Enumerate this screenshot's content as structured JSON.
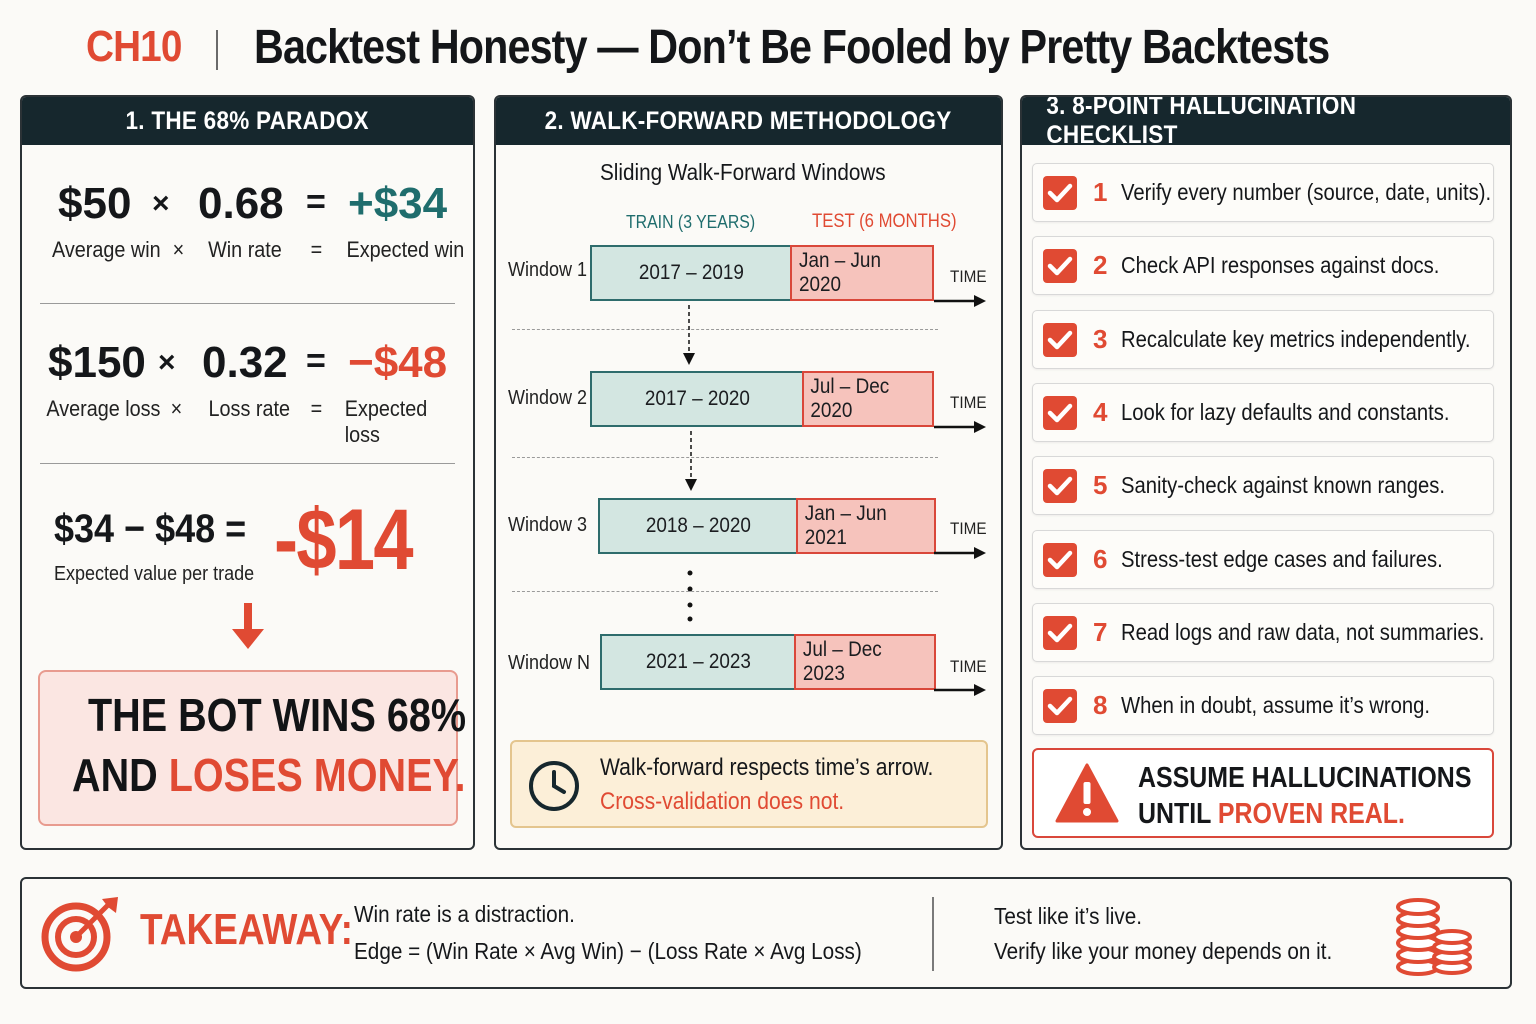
{
  "header": {
    "chapter": "CH10",
    "title": "Backtest Honesty — Don’t Be Fooled by Pretty Backtests"
  },
  "panel1": {
    "heading": "1. THE 68% PARADOX",
    "row1": {
      "a": "$50",
      "op": "×",
      "b": "0.68",
      "eq": "=",
      "result": "+$34",
      "la": "Average win",
      "lop": "×",
      "lb": "Win rate",
      "leq": "=",
      "lresult": "Expected win"
    },
    "row2": {
      "a": "$150",
      "op": "×",
      "b": "0.32",
      "eq": "=",
      "result": "−$48",
      "la": "Average loss",
      "lop": "×",
      "lb": "Loss rate",
      "leq": "=",
      "lresult": "Expected loss"
    },
    "row3": {
      "expr": "$34 − $48 =",
      "result": "-$14",
      "label": "Expected value per trade"
    },
    "banner": {
      "line1": "THE BOT WINS 68%",
      "line2a": "AND ",
      "line2b": "LOSES MONEY."
    }
  },
  "panel2": {
    "heading": "2. WALK-FORWARD METHODOLOGY",
    "subtitle": "Sliding Walk-Forward Windows",
    "train_header": "TRAIN (3 YEARS)",
    "test_header": "TEST (6 MONTHS)",
    "time_label": "TIME",
    "windows": [
      {
        "label": "Window 1",
        "train": "2017 – 2019",
        "test": "Jan – Jun 2020"
      },
      {
        "label": "Window 2",
        "train": "2017 – 2020",
        "test": "Jul – Dec 2020"
      },
      {
        "label": "Window 3",
        "train": "2018 – 2020",
        "test": "Jan – Jun 2021"
      },
      {
        "label": "Window N",
        "train": "2021 – 2023",
        "test": "Jul – Dec 2023"
      }
    ],
    "note": {
      "line1": "Walk-forward respects time’s arrow.",
      "line2": "Cross-validation does not."
    }
  },
  "panel3": {
    "heading": "3. 8-POINT HALLUCINATION CHECKLIST",
    "items": [
      {
        "num": "1",
        "text": "Verify every number (source, date, units)."
      },
      {
        "num": "2",
        "text": "Check API responses against docs."
      },
      {
        "num": "3",
        "text": "Recalculate key metrics independently."
      },
      {
        "num": "4",
        "text": "Look for lazy defaults and constants."
      },
      {
        "num": "5",
        "text": "Sanity-check against known ranges."
      },
      {
        "num": "6",
        "text": "Stress-test edge cases and failures."
      },
      {
        "num": "7",
        "text": "Read logs and raw data, not summaries."
      },
      {
        "num": "8",
        "text": "When in doubt, assume it’s wrong."
      }
    ],
    "alert": {
      "line1": "ASSUME HALLUCINATIONS",
      "line2a": "UNTIL ",
      "line2b": "PROVEN REAL."
    }
  },
  "takeaway": {
    "label": "TAKEAWAY:",
    "line1": "Win rate is a distraction.",
    "line2": "Edge  =  (Win Rate × Avg Win) − (Loss Rate × Avg Loss)",
    "right1": "Test like it’s live.",
    "right2": "Verify like your money depends on it."
  },
  "icons": {
    "check": "checkbox-check-icon",
    "clock": "clock-icon",
    "warning": "warning-triangle-icon",
    "target": "target-icon",
    "coins": "coin-stack-icon",
    "arrow_down": "arrow-down-icon"
  },
  "colors": {
    "accent_red": "#e04a33",
    "accent_green": "#1f6d6d",
    "header_bg": "#16272d"
  }
}
